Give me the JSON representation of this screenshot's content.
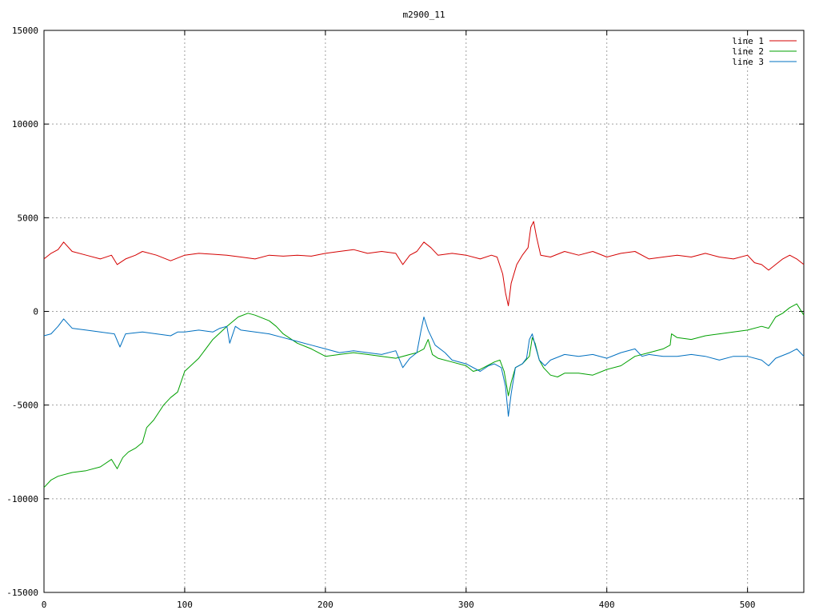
{
  "chart_data": {
    "type": "line",
    "title": "m2900_11",
    "xlabel": "",
    "ylabel": "",
    "xlim": [
      0,
      540
    ],
    "ylim": [
      -15000,
      15000
    ],
    "xticks": [
      0,
      100,
      200,
      300,
      400,
      500
    ],
    "yticks": [
      -15000,
      -10000,
      -5000,
      0,
      5000,
      10000,
      15000
    ],
    "xtick_labels": [
      "0",
      "100",
      "200",
      "300",
      "400",
      "500"
    ],
    "ytick_labels": [
      "-15000",
      "-10000",
      "-5000",
      "0",
      "5000",
      "10000",
      "15000"
    ],
    "grid": true,
    "legend_position": "top-right",
    "series": [
      {
        "name": "line 1",
        "color": "#d40000",
        "points": [
          [
            0,
            2800
          ],
          [
            5,
            3100
          ],
          [
            10,
            3300
          ],
          [
            14,
            3700
          ],
          [
            20,
            3200
          ],
          [
            30,
            3000
          ],
          [
            40,
            2800
          ],
          [
            48,
            3000
          ],
          [
            52,
            2500
          ],
          [
            58,
            2800
          ],
          [
            65,
            3000
          ],
          [
            70,
            3200
          ],
          [
            80,
            3000
          ],
          [
            90,
            2700
          ],
          [
            100,
            3000
          ],
          [
            110,
            3100
          ],
          [
            120,
            3050
          ],
          [
            130,
            3000
          ],
          [
            140,
            2900
          ],
          [
            150,
            2800
          ],
          [
            160,
            3000
          ],
          [
            170,
            2950
          ],
          [
            180,
            3000
          ],
          [
            190,
            2950
          ],
          [
            200,
            3100
          ],
          [
            210,
            3200
          ],
          [
            220,
            3300
          ],
          [
            230,
            3100
          ],
          [
            240,
            3200
          ],
          [
            250,
            3100
          ],
          [
            255,
            2500
          ],
          [
            260,
            3000
          ],
          [
            265,
            3200
          ],
          [
            270,
            3700
          ],
          [
            275,
            3400
          ],
          [
            280,
            3000
          ],
          [
            290,
            3100
          ],
          [
            300,
            3000
          ],
          [
            310,
            2800
          ],
          [
            318,
            3000
          ],
          [
            322,
            2900
          ],
          [
            326,
            2000
          ],
          [
            328,
            1000
          ],
          [
            330,
            300
          ],
          [
            332,
            1500
          ],
          [
            336,
            2500
          ],
          [
            340,
            3000
          ],
          [
            344,
            3400
          ],
          [
            346,
            4500
          ],
          [
            348,
            4800
          ],
          [
            350,
            4000
          ],
          [
            353,
            3000
          ],
          [
            360,
            2900
          ],
          [
            370,
            3200
          ],
          [
            380,
            3000
          ],
          [
            390,
            3200
          ],
          [
            400,
            2900
          ],
          [
            410,
            3100
          ],
          [
            420,
            3200
          ],
          [
            430,
            2800
          ],
          [
            440,
            2900
          ],
          [
            450,
            3000
          ],
          [
            460,
            2900
          ],
          [
            470,
            3100
          ],
          [
            480,
            2900
          ],
          [
            490,
            2800
          ],
          [
            500,
            3000
          ],
          [
            505,
            2600
          ],
          [
            510,
            2500
          ],
          [
            515,
            2200
          ],
          [
            520,
            2500
          ],
          [
            525,
            2800
          ],
          [
            530,
            3000
          ],
          [
            535,
            2800
          ],
          [
            540,
            2500
          ]
        ]
      },
      {
        "name": "line 2",
        "color": "#00a000",
        "points": [
          [
            0,
            -9400
          ],
          [
            5,
            -9000
          ],
          [
            10,
            -8800
          ],
          [
            20,
            -8600
          ],
          [
            30,
            -8500
          ],
          [
            40,
            -8300
          ],
          [
            48,
            -7900
          ],
          [
            52,
            -8400
          ],
          [
            56,
            -7800
          ],
          [
            60,
            -7500
          ],
          [
            65,
            -7300
          ],
          [
            70,
            -7000
          ],
          [
            73,
            -6200
          ],
          [
            78,
            -5800
          ],
          [
            85,
            -5000
          ],
          [
            90,
            -4600
          ],
          [
            95,
            -4300
          ],
          [
            100,
            -3200
          ],
          [
            110,
            -2500
          ],
          [
            120,
            -1500
          ],
          [
            130,
            -800
          ],
          [
            138,
            -300
          ],
          [
            145,
            -100
          ],
          [
            150,
            -200
          ],
          [
            160,
            -500
          ],
          [
            165,
            -800
          ],
          [
            170,
            -1200
          ],
          [
            180,
            -1700
          ],
          [
            190,
            -2000
          ],
          [
            200,
            -2400
          ],
          [
            210,
            -2300
          ],
          [
            220,
            -2200
          ],
          [
            230,
            -2300
          ],
          [
            240,
            -2400
          ],
          [
            250,
            -2500
          ],
          [
            260,
            -2300
          ],
          [
            265,
            -2200
          ],
          [
            270,
            -2000
          ],
          [
            273,
            -1500
          ],
          [
            276,
            -2300
          ],
          [
            280,
            -2500
          ],
          [
            290,
            -2700
          ],
          [
            300,
            -2900
          ],
          [
            305,
            -3200
          ],
          [
            310,
            -3100
          ],
          [
            315,
            -2900
          ],
          [
            320,
            -2700
          ],
          [
            324,
            -2600
          ],
          [
            327,
            -3200
          ],
          [
            330,
            -4500
          ],
          [
            332,
            -3800
          ],
          [
            335,
            -3000
          ],
          [
            340,
            -2800
          ],
          [
            345,
            -2400
          ],
          [
            347,
            -1400
          ],
          [
            349,
            -1700
          ],
          [
            352,
            -2600
          ],
          [
            355,
            -3000
          ],
          [
            360,
            -3400
          ],
          [
            365,
            -3500
          ],
          [
            370,
            -3300
          ],
          [
            380,
            -3300
          ],
          [
            390,
            -3400
          ],
          [
            400,
            -3100
          ],
          [
            410,
            -2900
          ],
          [
            420,
            -2400
          ],
          [
            430,
            -2200
          ],
          [
            440,
            -2000
          ],
          [
            445,
            -1800
          ],
          [
            446,
            -1200
          ],
          [
            450,
            -1400
          ],
          [
            460,
            -1500
          ],
          [
            470,
            -1300
          ],
          [
            480,
            -1200
          ],
          [
            490,
            -1100
          ],
          [
            500,
            -1000
          ],
          [
            510,
            -800
          ],
          [
            515,
            -900
          ],
          [
            520,
            -300
          ],
          [
            525,
            -100
          ],
          [
            530,
            200
          ],
          [
            535,
            400
          ],
          [
            540,
            -200
          ]
        ]
      },
      {
        "name": "line 3",
        "color": "#0070c0",
        "points": [
          [
            0,
            -1300
          ],
          [
            5,
            -1200
          ],
          [
            10,
            -800
          ],
          [
            14,
            -400
          ],
          [
            20,
            -900
          ],
          [
            30,
            -1000
          ],
          [
            40,
            -1100
          ],
          [
            50,
            -1200
          ],
          [
            54,
            -1900
          ],
          [
            58,
            -1200
          ],
          [
            70,
            -1100
          ],
          [
            80,
            -1200
          ],
          [
            90,
            -1300
          ],
          [
            95,
            -1100
          ],
          [
            100,
            -1100
          ],
          [
            110,
            -1000
          ],
          [
            120,
            -1100
          ],
          [
            125,
            -900
          ],
          [
            130,
            -800
          ],
          [
            132,
            -1700
          ],
          [
            136,
            -800
          ],
          [
            140,
            -1000
          ],
          [
            150,
            -1100
          ],
          [
            160,
            -1200
          ],
          [
            170,
            -1400
          ],
          [
            180,
            -1600
          ],
          [
            190,
            -1800
          ],
          [
            200,
            -2000
          ],
          [
            210,
            -2200
          ],
          [
            220,
            -2100
          ],
          [
            230,
            -2200
          ],
          [
            240,
            -2300
          ],
          [
            250,
            -2100
          ],
          [
            255,
            -3000
          ],
          [
            260,
            -2500
          ],
          [
            265,
            -2200
          ],
          [
            268,
            -1000
          ],
          [
            270,
            -300
          ],
          [
            273,
            -1000
          ],
          [
            278,
            -1800
          ],
          [
            285,
            -2200
          ],
          [
            290,
            -2600
          ],
          [
            300,
            -2800
          ],
          [
            310,
            -3200
          ],
          [
            316,
            -2900
          ],
          [
            320,
            -2800
          ],
          [
            325,
            -3000
          ],
          [
            328,
            -4000
          ],
          [
            330,
            -5600
          ],
          [
            332,
            -4400
          ],
          [
            335,
            -3000
          ],
          [
            340,
            -2800
          ],
          [
            343,
            -2500
          ],
          [
            345,
            -1500
          ],
          [
            347,
            -1200
          ],
          [
            349,
            -1800
          ],
          [
            352,
            -2600
          ],
          [
            356,
            -2900
          ],
          [
            360,
            -2600
          ],
          [
            370,
            -2300
          ],
          [
            380,
            -2400
          ],
          [
            390,
            -2300
          ],
          [
            400,
            -2500
          ],
          [
            410,
            -2200
          ],
          [
            420,
            -2000
          ],
          [
            425,
            -2400
          ],
          [
            430,
            -2300
          ],
          [
            440,
            -2400
          ],
          [
            450,
            -2400
          ],
          [
            460,
            -2300
          ],
          [
            470,
            -2400
          ],
          [
            480,
            -2600
          ],
          [
            490,
            -2400
          ],
          [
            500,
            -2400
          ],
          [
            510,
            -2600
          ],
          [
            515,
            -2900
          ],
          [
            520,
            -2500
          ],
          [
            530,
            -2200
          ],
          [
            535,
            -2000
          ],
          [
            540,
            -2400
          ]
        ]
      }
    ]
  }
}
